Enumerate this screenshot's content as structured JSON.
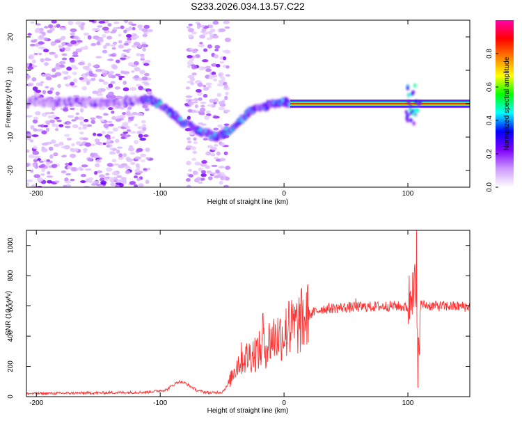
{
  "title": "S233.2026.034.13.57.C22",
  "chart_data": [
    {
      "type": "heatmap",
      "xlabel": "Height of straight line (km)",
      "ylabel": "Frequency (Hz)",
      "xlim": [
        -208,
        150
      ],
      "ylim": [
        -25,
        25
      ],
      "xticks": [
        {
          "v": -200,
          "label": "-200"
        },
        {
          "v": -100,
          "label": "-100"
        },
        {
          "v": 0,
          "label": "0"
        },
        {
          "v": 100,
          "label": "100"
        }
      ],
      "yticks": [
        {
          "v": 20,
          "label": "20"
        },
        {
          "v": 10,
          "label": "10"
        },
        {
          "v": 0,
          "label": "0"
        },
        {
          "v": -10,
          "label": "-10"
        },
        {
          "v": -20,
          "label": "-20"
        }
      ],
      "colorbar": {
        "label": "Normalized spectral amplitude",
        "range": [
          0,
          1
        ],
        "ticks": [
          {
            "v": 0.0,
            "label": "0.0"
          },
          {
            "v": 0.2,
            "label": "0.2"
          },
          {
            "v": 0.4,
            "label": "0.4"
          },
          {
            "v": 0.6,
            "label": "0.6"
          },
          {
            "v": 0.8,
            "label": "0.8"
          }
        ],
        "colors": [
          "#ffffff",
          "#cc99ff",
          "#8000ff",
          "#0000ff",
          "#00ffff",
          "#00ff00",
          "#ffff00",
          "#ff8000",
          "#ff0000",
          "#ff00aa"
        ]
      },
      "ridge": [
        {
          "x": -200,
          "y": 0.5
        },
        {
          "x": -180,
          "y": 0.5
        },
        {
          "x": -160,
          "y": 0.5
        },
        {
          "x": -140,
          "y": 0
        },
        {
          "x": -110,
          "y": 1.5
        },
        {
          "x": -100,
          "y": 0
        },
        {
          "x": -90,
          "y": -3
        },
        {
          "x": -80,
          "y": -6
        },
        {
          "x": -70,
          "y": -8
        },
        {
          "x": -60,
          "y": -9
        },
        {
          "x": -53,
          "y": -10
        },
        {
          "x": -45,
          "y": -8
        },
        {
          "x": -35,
          "y": -5
        },
        {
          "x": -28,
          "y": -2.5
        },
        {
          "x": -20,
          "y": -1.5
        },
        {
          "x": -10,
          "y": 0
        },
        {
          "x": 0,
          "y": 0.5
        },
        {
          "x": 20,
          "y": 0
        },
        {
          "x": 60,
          "y": 0
        },
        {
          "x": 100,
          "y": 0
        },
        {
          "x": 150,
          "y": 0
        }
      ],
      "tone": {
        "x_start": 5,
        "x_end": 150,
        "y": 0,
        "amplitude": 0.85
      },
      "noise_region": {
        "x_start": -208,
        "x_end": -45
      }
    },
    {
      "type": "line",
      "xlabel": "Height of straight line (km)",
      "ylabel": "SNR (10 * v/v)",
      "xlim": [
        -208,
        150
      ],
      "ylim": [
        0,
        1100
      ],
      "xticks": [
        {
          "v": -200,
          "label": "-200"
        },
        {
          "v": -100,
          "label": "-100"
        },
        {
          "v": 0,
          "label": "0"
        },
        {
          "v": 100,
          "label": "100"
        }
      ],
      "yticks": [
        {
          "v": 0,
          "label": "0"
        },
        {
          "v": 200,
          "label": "200"
        },
        {
          "v": 400,
          "label": "400"
        },
        {
          "v": 600,
          "label": "600"
        },
        {
          "v": 800,
          "label": "800"
        },
        {
          "v": 1000,
          "label": "1000"
        }
      ],
      "color": "#ff3333",
      "series": [
        {
          "name": "SNR",
          "x": [
            -208,
            -150,
            -110,
            -95,
            -90,
            -85,
            -80,
            -70,
            -60,
            -50,
            -45,
            -40,
            -35,
            -30,
            -25,
            -20,
            -15,
            -10,
            -5,
            0,
            10,
            20,
            30,
            50,
            70,
            90,
            100,
            103,
            105,
            107,
            108,
            110,
            120,
            150
          ],
          "y": [
            20,
            25,
            30,
            45,
            75,
            100,
            90,
            40,
            25,
            30,
            80,
            180,
            250,
            260,
            290,
            300,
            330,
            390,
            400,
            420,
            470,
            540,
            580,
            590,
            595,
            600,
            590,
            700,
            800,
            500,
            150,
            610,
            600,
            595
          ]
        }
      ],
      "peaks": [
        {
          "x": -17,
          "y": 550
        },
        {
          "x": 4,
          "y": 630
        },
        {
          "x": 58,
          "y": 650
        },
        {
          "x": 104,
          "y": 820
        },
        {
          "x": 107,
          "y": 1100
        },
        {
          "x": 108,
          "y": 60
        }
      ]
    }
  ]
}
